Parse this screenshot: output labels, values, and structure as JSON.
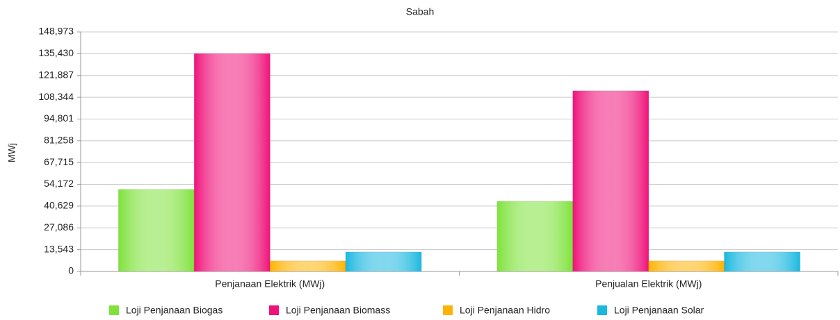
{
  "chart_data": {
    "type": "bar",
    "title": "Sabah",
    "y_label": "MWj",
    "categories": [
      "Penjanaan Elektrik (MWj)",
      "Penjualan Elektrik (MWj)"
    ],
    "series": [
      {
        "name": "Loji Penjanaan Biogas",
        "color": "#7ee23a",
        "values": [
          51000,
          43600
        ]
      },
      {
        "name": "Loji Penjanaan Biomass",
        "color": "#f0127a",
        "values": [
          135500,
          112300
        ]
      },
      {
        "name": "Loji Penjanaan Hidro",
        "color": "#ffb300",
        "values": [
          6500,
          6500
        ]
      },
      {
        "name": "Loji Penjanaan Solar",
        "color": "#1ab8e0",
        "values": [
          12100,
          12100
        ]
      }
    ],
    "ylim": [
      0,
      148973
    ],
    "yticks": [
      0,
      {
        "value": 13543,
        "label": "13,543"
      },
      {
        "value": 27086,
        "label": "27,086"
      },
      {
        "value": 40629,
        "label": "40,629"
      },
      {
        "value": 54172,
        "label": "54,172"
      },
      {
        "value": 67715,
        "label": "67,715"
      },
      {
        "value": 81258,
        "label": "81,258"
      },
      {
        "value": 94801,
        "label": "94,801"
      },
      {
        "value": 108344,
        "label": "108,344"
      },
      {
        "value": 121887,
        "label": "121,887"
      },
      {
        "value": 135430,
        "label": "135,430"
      },
      {
        "value": 148973,
        "label": "148,973"
      }
    ],
    "grid": true,
    "legend": "bottom"
  }
}
